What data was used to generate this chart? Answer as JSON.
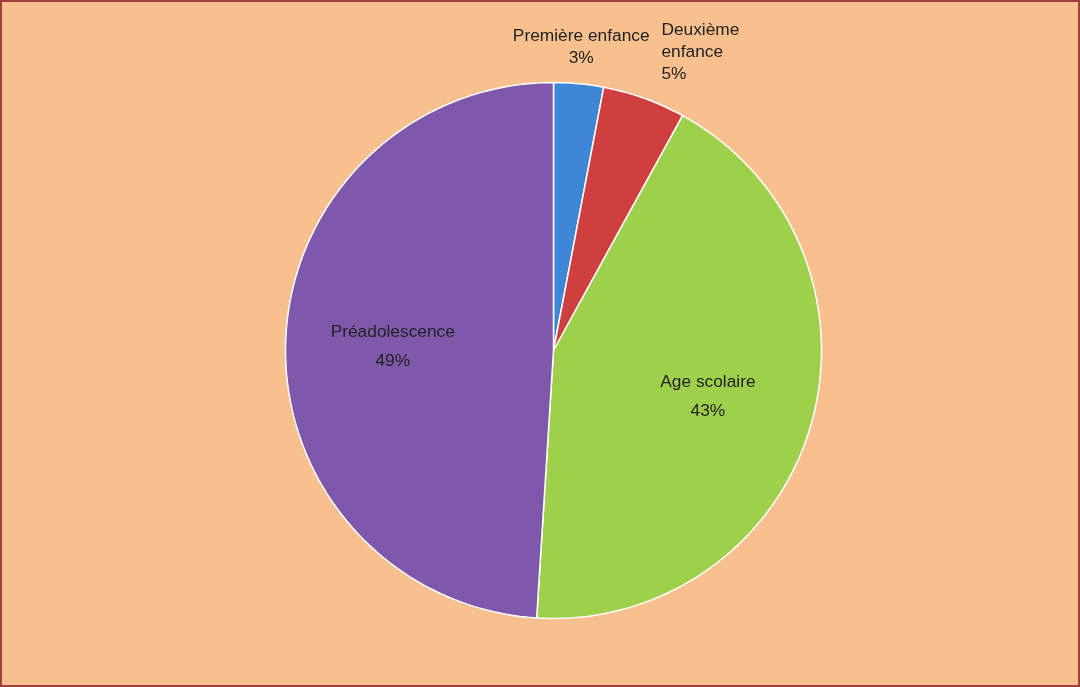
{
  "chart_data": {
    "type": "pie",
    "categories": [
      "Première enfance",
      "Deuxième enfance",
      "Age scolaire",
      "Préadolescence"
    ],
    "values": [
      3,
      5,
      43,
      49
    ],
    "colors": [
      "#3d87d6",
      "#cf3f3f",
      "#9fd04c",
      "#7f58ab"
    ],
    "value_labels": [
      "3%",
      "5%",
      "43%",
      "49%"
    ]
  }
}
